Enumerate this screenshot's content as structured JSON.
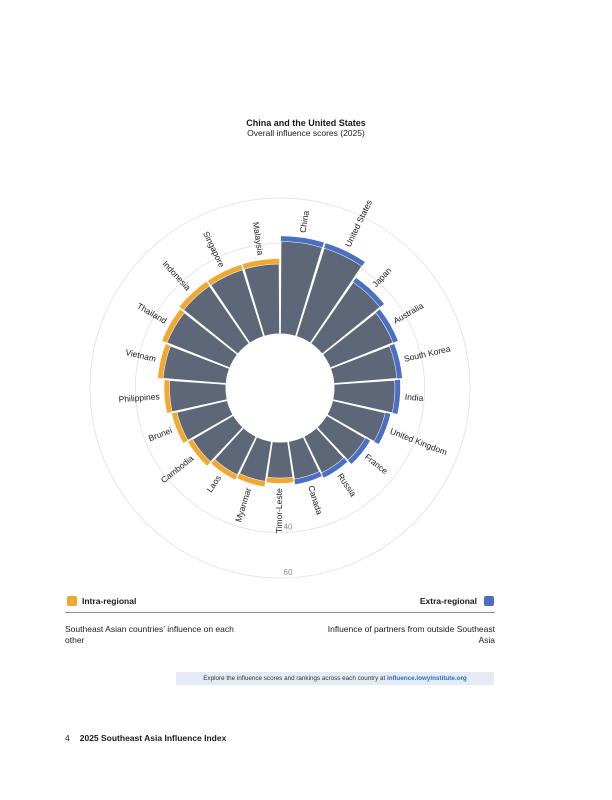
{
  "chart_data": {
    "type": "radial-bar",
    "title": "China and the United States",
    "subtitle": "Overall influence scores (2025)",
    "axis_max": 60,
    "inner_offset": 0,
    "gridline_values": [
      40,
      60
    ],
    "gridline_labels": [
      "40",
      "60"
    ],
    "categories": [
      "China",
      "United States",
      "Japan",
      "Australia",
      "South Korea",
      "India",
      "United Kingdom",
      "France",
      "Russia",
      "Canada",
      "Timor-Leste",
      "Myanmar",
      "Laos",
      "Cambodia",
      "Brunei",
      "Philippines",
      "Vietnam",
      "Thailand",
      "Indonesia",
      "Singapore",
      "Malaysia"
    ],
    "values": [
      41,
      41,
      33,
      30,
      28,
      27,
      24,
      20,
      18,
      17,
      16,
      18,
      19,
      21,
      23,
      25,
      28,
      30,
      31,
      31,
      31
    ],
    "groups": [
      "extra",
      "extra",
      "extra",
      "extra",
      "extra",
      "extra",
      "extra",
      "extra",
      "extra",
      "extra",
      "intra",
      "intra",
      "intra",
      "intra",
      "intra",
      "intra",
      "intra",
      "intra",
      "intra",
      "intra",
      "intra"
    ],
    "colors": {
      "bar": "#5e6778",
      "intra": "#f0a830",
      "extra": "#4a6fc3",
      "grid": "#dddddd",
      "label": "#1a1a1a"
    }
  },
  "legend": {
    "intra_label": "Intra-regional",
    "extra_label": "Extra-regional",
    "intra_desc": "Southeast Asian countries’ influence on each other",
    "extra_desc": "Influence of partners from outside Southeast Asia"
  },
  "explore": {
    "text": "Explore the influence scores and rankings across each country at ",
    "link": "influence.lowyinstitute.org"
  },
  "footer": {
    "page_number": "4",
    "publication": "2025 Southeast Asia Influence Index"
  }
}
